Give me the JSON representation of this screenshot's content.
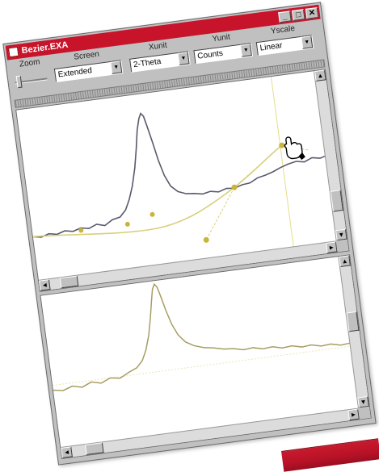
{
  "window": {
    "title": "Bezier.EXA",
    "buttons": {
      "minimize": "_",
      "maximize": "□",
      "close": "✕"
    }
  },
  "toolbar": {
    "zoom": {
      "label": "Zoom"
    },
    "screen": {
      "label": "Screen",
      "value": "Extended"
    },
    "xunit": {
      "label": "Xunit",
      "value": "2-Theta"
    },
    "yunit": {
      "label": "Yunit",
      "value": "Counts"
    },
    "yscale": {
      "label": "Yscale",
      "value": "Linear"
    }
  },
  "colors": {
    "title_bar": "#c8142b",
    "raw_data": "#5a5a6e",
    "bezier": "#d8cf7a",
    "control_point": "#c9b53a",
    "lower_profile": "#a89e63"
  },
  "icons": {
    "cursor": "hand-pointer-icon",
    "scroll_left": "arrow-left-icon",
    "scroll_right": "arrow-right-icon",
    "scroll_up": "arrow-up-icon",
    "scroll_down": "arrow-down-icon"
  },
  "scroll_glyphs": {
    "left": "◄",
    "right": "►",
    "up": "▲",
    "down": "▼"
  },
  "dropdown_glyph": "▼"
}
